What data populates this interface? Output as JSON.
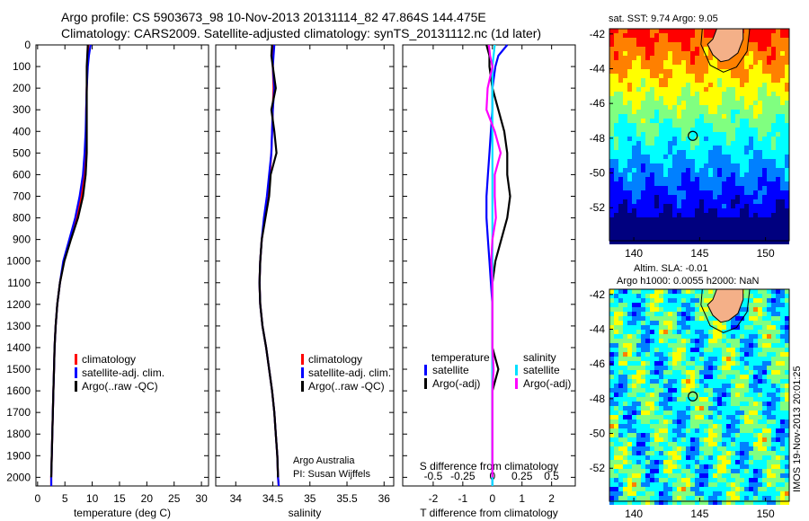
{
  "title": {
    "line1": "Argo profile: CS 5903673_98 10-Nov-2013 20131114_82 47.864S 144.475E",
    "line2": "Climatology: CARS2009. Satellite-adjusted climatology: synTS_20131112.nc (1d later)"
  },
  "chart_data": [
    {
      "type": "line",
      "name": "temperature-profile",
      "xlabel": "temperature (deg C)",
      "xlim": [
        -0.3,
        31.3
      ],
      "ylim": [
        0,
        2040
      ],
      "xticks": [
        0,
        5,
        10,
        15,
        20,
        25,
        30
      ],
      "yticks": [
        0,
        100,
        200,
        300,
        400,
        500,
        600,
        700,
        800,
        900,
        1000,
        1100,
        1200,
        1300,
        1400,
        1500,
        1600,
        1700,
        1800,
        1900,
        2000
      ],
      "depth": [
        0,
        50,
        100,
        200,
        300,
        400,
        500,
        600,
        700,
        800,
        900,
        1000,
        1100,
        1200,
        1300,
        1400,
        1500,
        1600,
        1700,
        1800,
        1900,
        2000,
        2040
      ],
      "series": [
        {
          "name": "climatology",
          "color": "#ff0000",
          "values": [
            9.3,
            9.2,
            9.1,
            9.0,
            8.9,
            8.9,
            8.8,
            8.5,
            8.0,
            7.2,
            6.0,
            4.8,
            4.1,
            3.6,
            3.3,
            3.1,
            3.0,
            2.9,
            2.8,
            2.7,
            2.6,
            2.5,
            2.5
          ]
        },
        {
          "name": "satellite-adj. clim.",
          "color": "#0000ff",
          "values": [
            9.7,
            9.4,
            9.2,
            9.0,
            8.9,
            8.8,
            8.6,
            8.3,
            7.7,
            6.9,
            5.8,
            4.7,
            4.1,
            3.6,
            3.3,
            3.1,
            3.0,
            2.9,
            2.8,
            2.7,
            2.6,
            2.5,
            2.5
          ]
        },
        {
          "name": "Argo(..raw -QC)",
          "color": "#000000",
          "values": [
            9.2,
            9.1,
            9.0,
            9.0,
            9.0,
            9.0,
            9.0,
            8.8,
            8.3,
            7.4,
            6.1,
            4.9,
            4.1,
            3.6,
            3.3,
            3.1,
            3.0,
            2.9,
            2.8,
            2.7,
            2.6,
            2.5,
            null
          ]
        }
      ],
      "legend": [
        "climatology",
        "satellite-adj. clim.",
        "Argo(..raw -QC)"
      ]
    },
    {
      "type": "line",
      "name": "salinity-profile",
      "xlabel": "salinity",
      "xlim": [
        33.73,
        36.13
      ],
      "ylim": [
        0,
        2040
      ],
      "xticks": [
        34,
        34.5,
        35,
        35.5,
        36
      ],
      "depth": [
        0,
        50,
        100,
        200,
        300,
        400,
        500,
        600,
        700,
        800,
        900,
        1000,
        1100,
        1200,
        1300,
        1400,
        1500,
        1600,
        1700,
        1800,
        1900,
        2000,
        2040
      ],
      "series": [
        {
          "name": "climatology",
          "color": "#ff0000",
          "values": [
            34.5,
            34.5,
            34.5,
            34.51,
            34.5,
            34.49,
            34.48,
            34.46,
            34.43,
            34.39,
            34.35,
            34.33,
            34.32,
            34.33,
            34.36,
            34.41,
            34.45,
            34.49,
            34.52,
            34.54,
            34.56,
            34.57,
            34.58
          ]
        },
        {
          "name": "satellite-adj. clim.",
          "color": "#0000ff",
          "values": [
            34.52,
            34.51,
            34.5,
            34.52,
            34.5,
            34.49,
            34.48,
            34.45,
            34.42,
            34.38,
            34.35,
            34.33,
            34.32,
            34.33,
            34.36,
            34.41,
            34.45,
            34.49,
            34.52,
            34.54,
            34.56,
            34.57,
            34.58
          ]
        },
        {
          "name": "Argo(..raw -QC)",
          "color": "#000000",
          "values": [
            34.49,
            34.48,
            34.5,
            34.54,
            34.48,
            34.52,
            34.55,
            34.47,
            34.45,
            34.4,
            34.35,
            34.33,
            34.32,
            34.33,
            34.36,
            34.41,
            34.45,
            34.49,
            34.52,
            34.54,
            34.56,
            34.57,
            null
          ]
        }
      ],
      "legend": [
        "climatology",
        "satellite-adj. clim.",
        "Argo(..raw -QC)"
      ],
      "annotation": [
        "Argo Australia",
        "PI: Susan Wijffels"
      ]
    },
    {
      "type": "line",
      "name": "difference-profile",
      "xlabel": "T difference from climatology",
      "xlabel2": "S difference from climatology",
      "xlim": [
        -3.03,
        2.8
      ],
      "xticks": [
        -2,
        -1,
        0,
        1,
        2
      ],
      "xticks2": [
        -0.5,
        -0.25,
        0,
        0.25,
        0.5
      ],
      "ylim": [
        0,
        2040
      ],
      "depth": [
        0,
        50,
        100,
        200,
        300,
        400,
        500,
        600,
        700,
        800,
        900,
        1000,
        1100,
        1200,
        1300,
        1400,
        1500,
        1600,
        1700,
        1800,
        1900,
        2000,
        2040
      ],
      "series": [
        {
          "name": "temperature satellite",
          "color": "#0000ff",
          "unit": "T",
          "values": [
            0.5,
            0.2,
            0.1,
            0.0,
            0.0,
            -0.05,
            -0.1,
            -0.15,
            -0.2,
            -0.2,
            -0.15,
            -0.1,
            -0.05,
            0,
            0,
            0,
            0,
            0,
            0,
            0,
            0,
            0,
            0
          ]
        },
        {
          "name": "temperature Argo(-adj)",
          "color": "#000000",
          "unit": "T",
          "values": [
            -0.2,
            -0.1,
            -0.1,
            0.0,
            0.2,
            0.4,
            0.5,
            0.5,
            0.6,
            0.5,
            0.3,
            0.1,
            0.0,
            0,
            0,
            0,
            0.2,
            0,
            0,
            0,
            0,
            0,
            null
          ]
        },
        {
          "name": "salinity satellite",
          "color": "#00e0ff",
          "unit": "S",
          "values": [
            0.02,
            0.01,
            0,
            0,
            0,
            0,
            0,
            0,
            0,
            0,
            0,
            0,
            0,
            0,
            0,
            0,
            0,
            0,
            0,
            0,
            0,
            0,
            0
          ]
        },
        {
          "name": "salinity Argo(-adj)",
          "color": "#ff00ff",
          "unit": "S",
          "values": [
            -0.03,
            -0.02,
            0,
            -0.04,
            -0.05,
            0.02,
            0.07,
            0.02,
            0.02,
            0.03,
            0.0,
            -0.01,
            0,
            0,
            0,
            0,
            0.01,
            0,
            0,
            0,
            0,
            0,
            null
          ]
        }
      ],
      "legend": {
        "temp_header": "temperature",
        "sal_header": "salinity",
        "temp": [
          "satellite",
          "Argo(-adj)"
        ],
        "sal": [
          "satellite",
          "Argo(-adj)"
        ]
      }
    }
  ],
  "maps": {
    "sst": {
      "title": "sat. SST: 9.74 Argo: 9.05",
      "xticks": [
        140,
        145,
        150
      ],
      "yticks": [
        -42,
        -44,
        -46,
        -48,
        -50,
        -52
      ],
      "lon": [
        138.15,
        151.8
      ],
      "lat": [
        -53.9,
        -41.7
      ]
    },
    "sla": {
      "title1": "Altim. SLA: -0.01",
      "title2": "Argo h1000: 0.0055 h2000: NaN",
      "xticks": [
        140,
        145,
        150
      ],
      "yticks": [
        -42,
        -44,
        -46,
        -48,
        -50,
        -52
      ],
      "lon": [
        138.15,
        151.8
      ],
      "lat": [
        -53.9,
        -41.7
      ]
    },
    "float_position": {
      "lon": 144.475,
      "lat": -47.864
    },
    "land_color": "#f4b088",
    "colormap": [
      "#00007f",
      "#0000ff",
      "#0080ff",
      "#00ffff",
      "#80ff80",
      "#ffff00",
      "#ff8000",
      "#ff0000",
      "#7f0000"
    ]
  },
  "timestamp": "IMOS 19-Nov-2013 20:01:25"
}
